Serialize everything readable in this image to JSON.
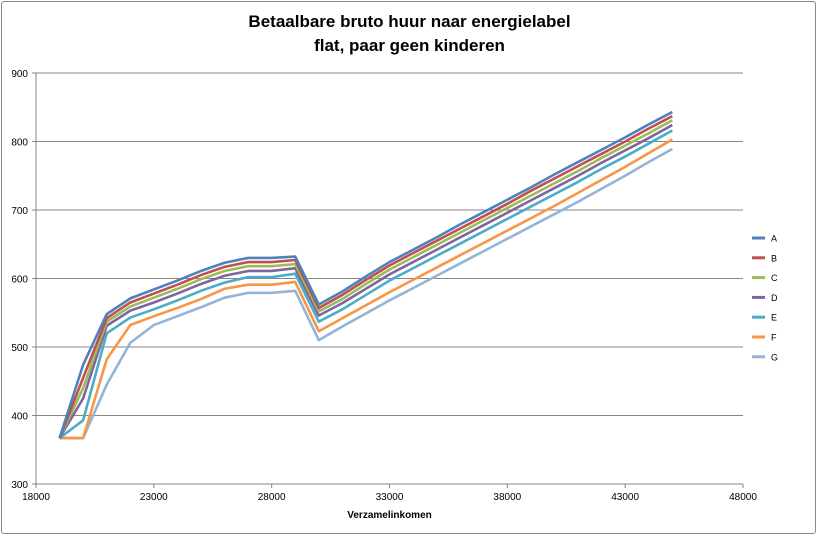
{
  "chart_data": {
    "type": "line",
    "title": "Betaalbare bruto huur naar energielabel",
    "subtitle": "flat, paar geen kinderen",
    "xlabel": "Verzamelinkomen",
    "ylabel": "",
    "xlim": [
      18000,
      48000
    ],
    "ylim": [
      300,
      900
    ],
    "xticks": [
      18000,
      23000,
      28000,
      33000,
      38000,
      43000,
      48000
    ],
    "yticks": [
      300,
      400,
      500,
      600,
      700,
      800,
      900
    ],
    "grid": "horizontal",
    "legend_position": "right",
    "x": [
      19000,
      20000,
      21000,
      22000,
      23000,
      24000,
      25000,
      26000,
      27000,
      28000,
      29000,
      30000,
      31000,
      32000,
      33000,
      34000,
      35000,
      36000,
      37000,
      38000,
      39000,
      40000,
      41000,
      42000,
      43000,
      44000,
      45000
    ],
    "series": [
      {
        "name": "A",
        "color": "#4F81BD",
        "values": [
          367,
          474,
          548,
          571,
          584,
          597,
          611,
          623,
          630,
          630,
          632,
          562,
          581,
          603,
          624,
          642,
          660,
          679,
          697,
          715,
          733,
          752,
          770,
          788,
          806,
          825,
          843
        ]
      },
      {
        "name": "B",
        "color": "#C0504D",
        "values": [
          367,
          455,
          542,
          565,
          578,
          591,
          605,
          617,
          624,
          624,
          627,
          557,
          576,
          598,
          619,
          637,
          655,
          673,
          691,
          709,
          728,
          746,
          764,
          782,
          800,
          819,
          837
        ]
      },
      {
        "name": "C",
        "color": "#9BBB59",
        "values": [
          367,
          440,
          537,
          559,
          572,
          585,
          599,
          611,
          618,
          618,
          621,
          552,
          570,
          592,
          613,
          631,
          649,
          667,
          685,
          703,
          721,
          739,
          757,
          776,
          794,
          812,
          831
        ]
      },
      {
        "name": "D",
        "color": "#8064A2",
        "values": [
          367,
          425,
          531,
          553,
          565,
          578,
          592,
          604,
          611,
          611,
          615,
          546,
          564,
          585,
          606,
          624,
          642,
          660,
          678,
          696,
          714,
          732,
          750,
          769,
          787,
          805,
          824
        ]
      },
      {
        "name": "E",
        "color": "#4BACC6",
        "values": [
          367,
          393,
          520,
          543,
          555,
          568,
          582,
          594,
          602,
          602,
          607,
          537,
          555,
          576,
          597,
          615,
          633,
          651,
          669,
          687,
          705,
          723,
          741,
          760,
          778,
          797,
          816
        ]
      },
      {
        "name": "F",
        "color": "#F79646",
        "values": [
          367,
          367,
          482,
          532,
          545,
          557,
          570,
          585,
          591,
          591,
          595,
          523,
          542,
          561,
          580,
          598,
          616,
          634,
          652,
          670,
          688,
          706,
          725,
          744,
          763,
          783,
          803
        ]
      },
      {
        "name": "G",
        "color": "#95B3D7",
        "values": [
          367,
          367,
          445,
          506,
          532,
          545,
          558,
          572,
          579,
          579,
          582,
          510,
          530,
          549,
          568,
          586,
          604,
          622,
          640,
          658,
          676,
          694,
          712,
          731,
          750,
          770,
          789
        ]
      }
    ]
  }
}
